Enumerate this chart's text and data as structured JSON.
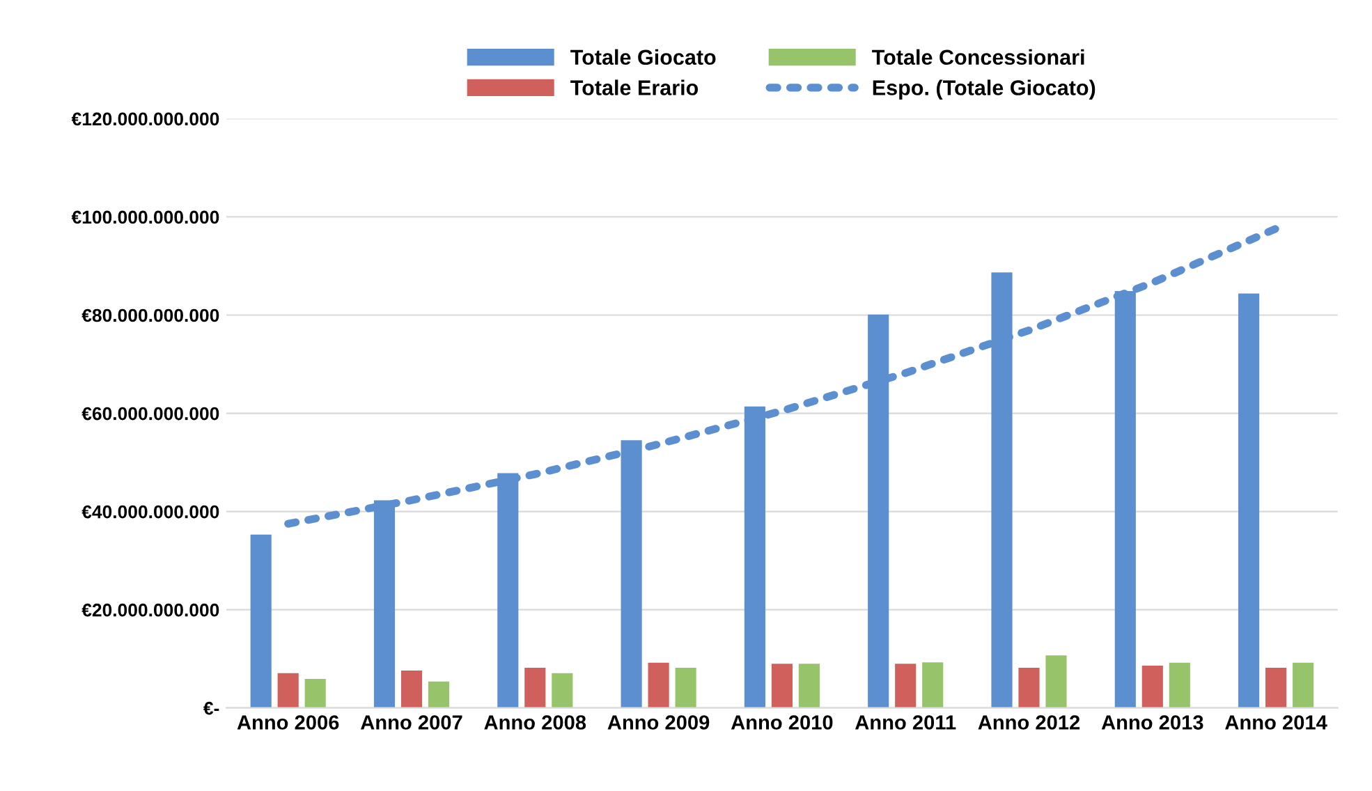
{
  "chart_data": {
    "type": "bar",
    "categories": [
      "Anno 2006",
      "Anno 2007",
      "Anno 2008",
      "Anno 2009",
      "Anno 2010",
      "Anno 2011",
      "Anno 2012",
      "Anno 2013",
      "Anno 2014"
    ],
    "series": [
      {
        "name": "Totale Giocato",
        "color": "#5b8fcf",
        "values": [
          35300000000,
          42300000000,
          47800000000,
          54500000000,
          61400000000,
          80100000000,
          88700000000,
          84900000000,
          84400000000
        ]
      },
      {
        "name": "Totale Erario",
        "color": "#d0605c",
        "values": [
          7100000000,
          7600000000,
          8200000000,
          9200000000,
          9000000000,
          9000000000,
          8200000000,
          8600000000,
          8200000000
        ]
      },
      {
        "name": "Totale Concessionari",
        "color": "#97c46a",
        "values": [
          5900000000,
          5400000000,
          7100000000,
          8200000000,
          9000000000,
          9300000000,
          10700000000,
          9200000000,
          9200000000
        ]
      },
      {
        "name": "Espo. (Totale Giocato)",
        "color": "#5b8fcf",
        "type": "line",
        "line_style": "dotted",
        "values": [
          37500000000,
          42300000000,
          47600000000,
          53700000000,
          60500000000,
          68200000000,
          76900000000,
          86600000000,
          97600000000
        ]
      }
    ],
    "ylim": [
      0,
      120000000000
    ],
    "yticks": [
      {
        "value": 0,
        "label": "€-"
      },
      {
        "value": 20000000000,
        "label": "€20.000.000.000"
      },
      {
        "value": 40000000000,
        "label": "€40.000.000.000"
      },
      {
        "value": 60000000000,
        "label": "€60.000.000.000"
      },
      {
        "value": 80000000000,
        "label": "€80.000.000.000"
      },
      {
        "value": 100000000000,
        "label": "€100.000.000.000"
      },
      {
        "value": 120000000000,
        "label": "€120.000.000.000"
      }
    ],
    "grid": "y",
    "legend": "top"
  }
}
